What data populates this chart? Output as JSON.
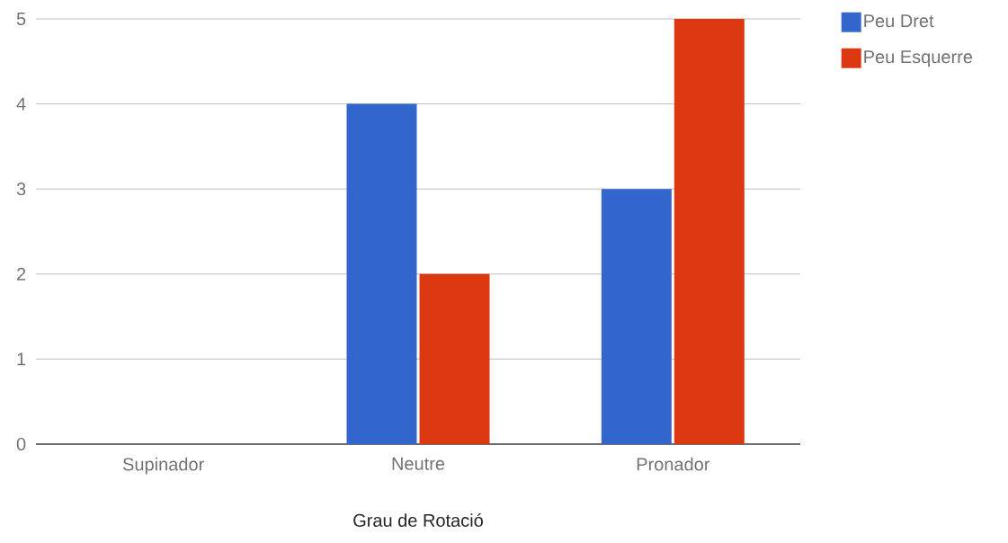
{
  "chart_data": {
    "type": "bar",
    "xlabel": "Grau de Rotació",
    "categories": [
      "Supinador",
      "Neutre",
      "Pronador"
    ],
    "series": [
      {
        "name": "Peu Dret",
        "color": "#3366cc",
        "values": [
          0,
          4,
          3
        ]
      },
      {
        "name": "Peu Esquerre",
        "color": "#dc3912",
        "values": [
          0,
          2,
          5
        ]
      }
    ],
    "ylim": [
      0,
      5
    ],
    "yticks": [
      0,
      1,
      2,
      3,
      4,
      5
    ],
    "grid": "y",
    "legend": "right"
  }
}
